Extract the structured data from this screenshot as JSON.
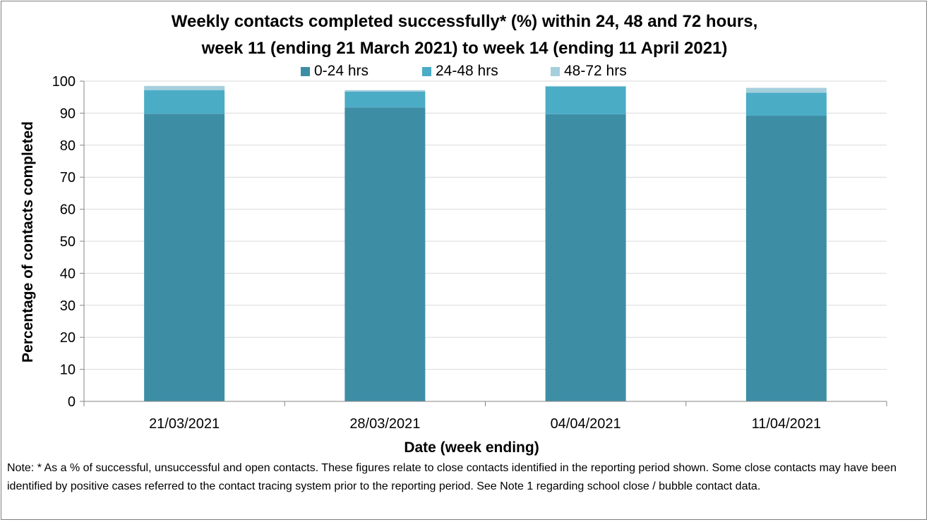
{
  "chart_data": {
    "type": "bar",
    "stacked": true,
    "title": "Weekly contacts completed successfully* (%) within 24, 48 and 72 hours,",
    "subtitle": "week 11 (ending 21  March 2021) to week 14 (ending 11 April 2021)",
    "xlabel": "Date (week ending)",
    "ylabel": "Percentage of contacts completed",
    "categories": [
      "21/03/2021",
      "28/03/2021",
      "04/04/2021",
      "11/04/2021"
    ],
    "series": [
      {
        "name": "0-24 hrs",
        "values": [
          89.8,
          91.8,
          89.7,
          89.2
        ],
        "color": "#3d8ea5"
      },
      {
        "name": "24-48 hrs",
        "values": [
          7.4,
          4.9,
          8.6,
          7.2
        ],
        "color": "#4bacc6"
      },
      {
        "name": "48-72 hrs",
        "values": [
          1.3,
          0.5,
          0.2,
          1.5
        ],
        "color": "#a5cfdd"
      }
    ],
    "ylim": [
      0,
      100
    ],
    "yticks": [
      0,
      10,
      20,
      30,
      40,
      50,
      60,
      70,
      80,
      90,
      100
    ],
    "grid": true,
    "legend_position": "top"
  },
  "note": "Note: * As a % of successful, unsuccessful and open contacts. These figures relate to close contacts identified in the reporting period shown. Some close contacts may have been identified by positive cases referred to the contact tracing system prior to the reporting period. See Note 1 regarding school close / bubble contact data."
}
